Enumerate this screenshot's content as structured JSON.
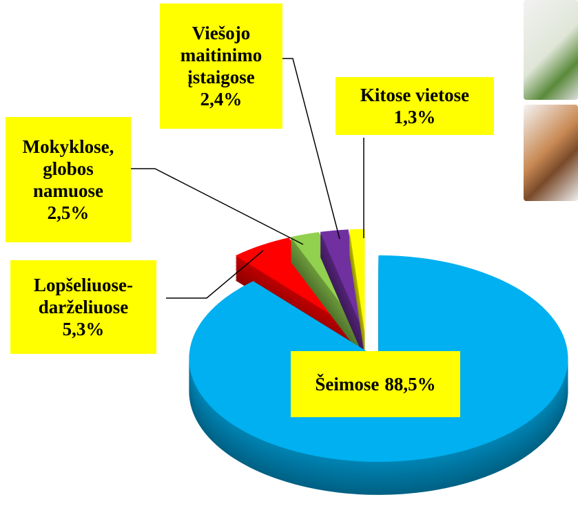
{
  "chart_data": {
    "type": "pie",
    "categories": [
      "Šeimose",
      "Lopšeliuose-darželiuose",
      "Mokyklose, globos namuose",
      "Viešojo maitinimo įstaigose",
      "Kitose vietose"
    ],
    "values": [
      88.5,
      5.3,
      2.5,
      2.4,
      1.3
    ],
    "value_labels": [
      "88,5%",
      "5,3%",
      "2,5%",
      "2,4%",
      "1,3%"
    ],
    "colors": [
      "#00b0f0",
      "#ff0000",
      "#92d050",
      "#7030a0",
      "#ffff00"
    ]
  }
}
